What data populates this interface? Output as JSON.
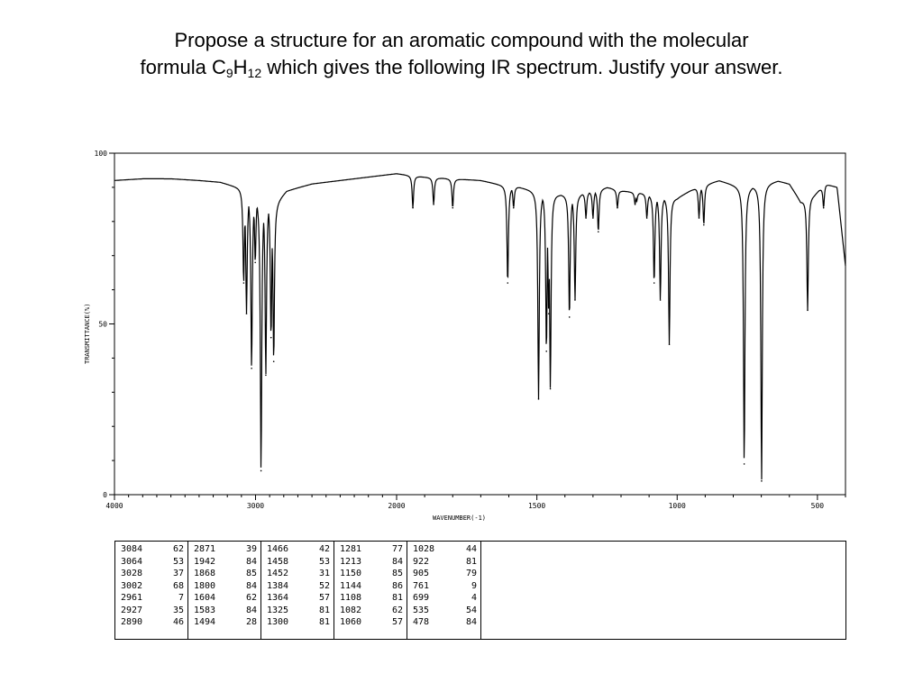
{
  "slide": {
    "title_line1": "Propose a structure for an aromatic compound with the molecular",
    "title_line2_prefix": "formula C",
    "title_sub_c": "9",
    "title_h": "H",
    "title_sub_h": "12",
    "title_line2_suffix": " which gives the following IR spectrum.  Justify your answer."
  },
  "chart_data": {
    "type": "line",
    "title": "",
    "xlabel": "WAVENUMBER(-1)",
    "ylabel": "TRANSMITTANCE(%)",
    "xlim": [
      4000,
      400
    ],
    "ylim": [
      0,
      100
    ],
    "x_ticks": [
      4000,
      3000,
      2000,
      1500,
      1000,
      500
    ],
    "x_tick_labels": [
      "4000",
      "3000",
      "2000",
      "1500",
      "1000",
      "500"
    ],
    "y_ticks": [
      0,
      50,
      100
    ],
    "y_tick_labels": [
      "0",
      "50",
      "100"
    ],
    "grid": false,
    "baseline": [
      [
        4000,
        92
      ],
      [
        3800,
        92.5
      ],
      [
        3600,
        92.5
      ],
      [
        3400,
        92
      ],
      [
        3250,
        91.5
      ],
      [
        3120,
        90
      ],
      [
        2850,
        86
      ],
      [
        2780,
        89
      ],
      [
        2600,
        91
      ],
      [
        2400,
        92
      ],
      [
        2200,
        93
      ],
      [
        2000,
        94
      ],
      [
        1900,
        93
      ],
      [
        1700,
        92
      ],
      [
        1640,
        91
      ],
      [
        1560,
        90
      ],
      [
        1500,
        89
      ],
      [
        1420,
        88
      ],
      [
        1350,
        88
      ],
      [
        1250,
        90
      ],
      [
        1200,
        89
      ],
      [
        1100,
        88
      ],
      [
        1000,
        87
      ],
      [
        930,
        90
      ],
      [
        850,
        92
      ],
      [
        760,
        90
      ],
      [
        700,
        91
      ],
      [
        640,
        92
      ],
      [
        600,
        91
      ],
      [
        560,
        86
      ],
      [
        510,
        88
      ],
      [
        470,
        91
      ],
      [
        430,
        90
      ],
      [
        400,
        67
      ]
    ],
    "peaks": [
      {
        "wn": 3084,
        "t": 62
      },
      {
        "wn": 3064,
        "t": 53
      },
      {
        "wn": 3028,
        "t": 37
      },
      {
        "wn": 3002,
        "t": 68
      },
      {
        "wn": 2961,
        "t": 7
      },
      {
        "wn": 2927,
        "t": 35
      },
      {
        "wn": 2890,
        "t": 46
      },
      {
        "wn": 2871,
        "t": 39
      },
      {
        "wn": 1942,
        "t": 84
      },
      {
        "wn": 1868,
        "t": 85
      },
      {
        "wn": 1800,
        "t": 84
      },
      {
        "wn": 1604,
        "t": 62
      },
      {
        "wn": 1583,
        "t": 84
      },
      {
        "wn": 1494,
        "t": 28
      },
      {
        "wn": 1466,
        "t": 42
      },
      {
        "wn": 1458,
        "t": 53
      },
      {
        "wn": 1452,
        "t": 31
      },
      {
        "wn": 1384,
        "t": 52
      },
      {
        "wn": 1364,
        "t": 57
      },
      {
        "wn": 1325,
        "t": 81
      },
      {
        "wn": 1300,
        "t": 81
      },
      {
        "wn": 1281,
        "t": 77
      },
      {
        "wn": 1213,
        "t": 84
      },
      {
        "wn": 1150,
        "t": 85
      },
      {
        "wn": 1144,
        "t": 86
      },
      {
        "wn": 1108,
        "t": 81
      },
      {
        "wn": 1082,
        "t": 62
      },
      {
        "wn": 1060,
        "t": 57
      },
      {
        "wn": 1028,
        "t": 44
      },
      {
        "wn": 922,
        "t": 81
      },
      {
        "wn": 905,
        "t": 79
      },
      {
        "wn": 761,
        "t": 9
      },
      {
        "wn": 699,
        "t": 4
      },
      {
        "wn": 535,
        "t": 54
      },
      {
        "wn": 478,
        "t": 84
      }
    ]
  },
  "peak_table": {
    "columns": [
      [
        [
          "3084",
          "62"
        ],
        [
          "3064",
          "53"
        ],
        [
          "3028",
          "37"
        ],
        [
          "3002",
          "68"
        ],
        [
          "2961",
          "7"
        ],
        [
          "2927",
          "35"
        ],
        [
          "2890",
          "46"
        ]
      ],
      [
        [
          "2871",
          "39"
        ],
        [
          "1942",
          "84"
        ],
        [
          "1868",
          "85"
        ],
        [
          "1800",
          "84"
        ],
        [
          "1604",
          "62"
        ],
        [
          "1583",
          "84"
        ],
        [
          "1494",
          "28"
        ]
      ],
      [
        [
          "1466",
          "42"
        ],
        [
          "1458",
          "53"
        ],
        [
          "1452",
          "31"
        ],
        [
          "1384",
          "52"
        ],
        [
          "1364",
          "57"
        ],
        [
          "1325",
          "81"
        ],
        [
          "1300",
          "81"
        ]
      ],
      [
        [
          "1281",
          "77"
        ],
        [
          "1213",
          "84"
        ],
        [
          "1150",
          "85"
        ],
        [
          "1144",
          "86"
        ],
        [
          "1108",
          "81"
        ],
        [
          "1082",
          "62"
        ],
        [
          "1060",
          "57"
        ]
      ],
      [
        [
          "1028",
          "44"
        ],
        [
          "922",
          "81"
        ],
        [
          "905",
          "79"
        ],
        [
          "761",
          "9"
        ],
        [
          "699",
          "4"
        ],
        [
          "535",
          "54"
        ],
        [
          "478",
          "84"
        ]
      ]
    ]
  }
}
